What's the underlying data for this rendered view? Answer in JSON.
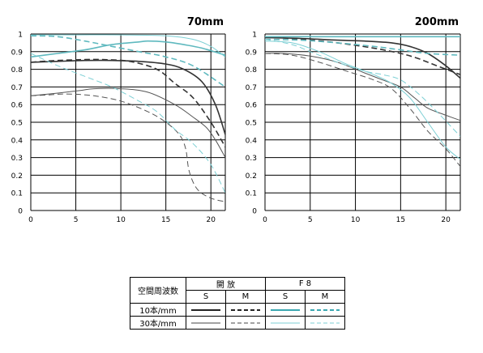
{
  "chart_data": [
    {
      "type": "line",
      "title": "70mm",
      "xlim": [
        0,
        21.6
      ],
      "ylim": [
        0,
        1
      ],
      "xticks": [
        0,
        5,
        10,
        15,
        20
      ],
      "yticks": [
        0,
        0.1,
        0.2,
        0.3,
        0.4,
        0.5,
        0.6,
        0.7,
        0.8,
        0.9,
        1
      ],
      "ytick_labels": [
        "0",
        "0.1",
        "0.2",
        "0.3",
        "0.4",
        "0.5",
        "0.6",
        "0.7",
        "0.8",
        "0.9",
        "1"
      ],
      "grid": true,
      "series": [
        {
          "freq": "10",
          "aperture": "open",
          "orient": "S",
          "color": "#333333",
          "thick": true,
          "dashed": false,
          "x": [
            0,
            3,
            6,
            9,
            12,
            15,
            17,
            19,
            20.5,
            21.6
          ],
          "y": [
            0.84,
            0.845,
            0.85,
            0.85,
            0.845,
            0.83,
            0.8,
            0.73,
            0.6,
            0.43
          ]
        },
        {
          "freq": "10",
          "aperture": "open",
          "orient": "M",
          "color": "#333333",
          "thick": true,
          "dashed": true,
          "x": [
            0,
            3,
            6,
            8,
            11,
            14,
            16,
            18,
            20,
            21.6
          ],
          "y": [
            0.84,
            0.85,
            0.855,
            0.855,
            0.845,
            0.8,
            0.72,
            0.64,
            0.5,
            0.36
          ]
        },
        {
          "freq": "30",
          "aperture": "open",
          "orient": "S",
          "color": "#555555",
          "thick": false,
          "dashed": false,
          "x": [
            0,
            3,
            5.5,
            7,
            10,
            13,
            16,
            18,
            19.5,
            20.5,
            21.6
          ],
          "y": [
            0.65,
            0.665,
            0.68,
            0.69,
            0.69,
            0.67,
            0.6,
            0.53,
            0.47,
            0.4,
            0.3
          ]
        },
        {
          "freq": "30",
          "aperture": "open",
          "orient": "M",
          "color": "#555555",
          "thick": false,
          "dashed": true,
          "x": [
            0,
            2,
            4,
            7,
            10,
            13,
            15,
            16.5,
            17.2,
            17.6,
            18.5,
            20,
            21.6
          ],
          "y": [
            0.65,
            0.655,
            0.66,
            0.65,
            0.62,
            0.56,
            0.5,
            0.43,
            0.35,
            0.22,
            0.12,
            0.07,
            0.05
          ]
        },
        {
          "freq": "10",
          "aperture": "F8",
          "orient": "S",
          "color": "#5fb9bf",
          "thick": true,
          "dashed": false,
          "x": [
            0,
            3,
            6,
            9,
            12,
            13,
            15,
            17,
            19,
            21.6
          ],
          "y": [
            0.87,
            0.89,
            0.91,
            0.94,
            0.955,
            0.96,
            0.955,
            0.94,
            0.92,
            0.88
          ]
        },
        {
          "freq": "10",
          "aperture": "F8",
          "orient": "M",
          "color": "#5fb9bf",
          "thick": true,
          "dashed": true,
          "x": [
            0,
            3,
            6,
            9,
            12,
            15,
            18,
            21.6
          ],
          "y": [
            0.99,
            0.985,
            0.96,
            0.93,
            0.9,
            0.87,
            0.82,
            0.7
          ]
        },
        {
          "freq": "30",
          "aperture": "F8",
          "orient": "S",
          "color": "#7ccfd4",
          "thick": false,
          "dashed": false,
          "x": [
            0,
            5,
            10,
            15,
            18,
            20,
            21.6
          ],
          "y": [
            0.995,
            0.995,
            0.995,
            0.99,
            0.97,
            0.93,
            0.87
          ]
        },
        {
          "freq": "30",
          "aperture": "F8",
          "orient": "M",
          "color": "#7ccfd4",
          "thick": false,
          "dashed": true,
          "x": [
            0,
            3,
            6,
            9,
            12,
            14,
            16,
            18,
            20,
            21.6
          ],
          "y": [
            0.89,
            0.82,
            0.76,
            0.7,
            0.62,
            0.56,
            0.46,
            0.38,
            0.26,
            0.1
          ]
        }
      ]
    },
    {
      "type": "line",
      "title": "200mm",
      "xlim": [
        0,
        21.6
      ],
      "ylim": [
        0,
        1
      ],
      "xticks": [
        0,
        5,
        10,
        15,
        20
      ],
      "yticks": [
        0,
        0.1,
        0.2,
        0.3,
        0.4,
        0.5,
        0.6,
        0.7,
        0.8,
        0.9,
        1
      ],
      "ytick_labels": [
        "0",
        "0.1",
        "0.2",
        "0.3",
        "0.4",
        "0.5",
        "0.6",
        "0.7",
        "0.8",
        "0.9",
        "1"
      ],
      "grid": true,
      "series": [
        {
          "freq": "10",
          "aperture": "open",
          "orient": "S",
          "color": "#333333",
          "thick": true,
          "dashed": false,
          "x": [
            0,
            4,
            8,
            11,
            14,
            16,
            18,
            20,
            21.6
          ],
          "y": [
            0.98,
            0.975,
            0.965,
            0.96,
            0.95,
            0.93,
            0.89,
            0.82,
            0.75
          ]
        },
        {
          "freq": "10",
          "aperture": "open",
          "orient": "M",
          "color": "#333333",
          "thick": true,
          "dashed": true,
          "x": [
            0,
            4,
            8,
            12,
            15,
            17,
            19,
            21.6
          ],
          "y": [
            0.985,
            0.97,
            0.95,
            0.92,
            0.89,
            0.86,
            0.82,
            0.77
          ]
        },
        {
          "freq": "30",
          "aperture": "open",
          "orient": "S",
          "color": "#555555",
          "thick": false,
          "dashed": false,
          "x": [
            0,
            2,
            5,
            8,
            11,
            13,
            15,
            16.5,
            18,
            20,
            21.6
          ],
          "y": [
            0.89,
            0.89,
            0.875,
            0.84,
            0.78,
            0.74,
            0.7,
            0.64,
            0.58,
            0.54,
            0.51
          ]
        },
        {
          "freq": "30",
          "aperture": "open",
          "orient": "M",
          "color": "#555555",
          "thick": false,
          "dashed": true,
          "x": [
            0,
            3,
            6,
            9,
            12,
            14,
            16,
            18,
            20,
            21.6
          ],
          "y": [
            0.89,
            0.88,
            0.84,
            0.79,
            0.74,
            0.69,
            0.58,
            0.45,
            0.35,
            0.25
          ]
        },
        {
          "freq": "10",
          "aperture": "F8",
          "orient": "S",
          "color": "#5fb9bf",
          "thick": true,
          "dashed": false,
          "x": [
            0,
            5,
            10,
            15,
            21.6
          ],
          "y": [
            0.985,
            0.985,
            0.985,
            0.985,
            0.985
          ]
        },
        {
          "freq": "10",
          "aperture": "F8",
          "orient": "M",
          "color": "#5fb9bf",
          "thick": true,
          "dashed": true,
          "x": [
            0,
            4,
            8,
            12,
            15,
            18,
            21.6
          ],
          "y": [
            0.97,
            0.965,
            0.95,
            0.93,
            0.91,
            0.89,
            0.88
          ]
        },
        {
          "freq": "30",
          "aperture": "F8",
          "orient": "S",
          "color": "#7ccfd4",
          "thick": false,
          "dashed": false,
          "x": [
            0,
            3,
            6,
            9,
            12,
            14,
            16,
            18,
            20,
            21.6
          ],
          "y": [
            0.96,
            0.95,
            0.9,
            0.83,
            0.77,
            0.72,
            0.64,
            0.5,
            0.36,
            0.29
          ]
        },
        {
          "freq": "30",
          "aperture": "F8",
          "orient": "M",
          "color": "#7ccfd4",
          "thick": false,
          "dashed": true,
          "x": [
            0,
            3,
            5,
            8,
            11,
            13,
            15,
            17,
            19,
            21.6
          ],
          "y": [
            0.97,
            0.94,
            0.9,
            0.84,
            0.79,
            0.77,
            0.74,
            0.66,
            0.56,
            0.42
          ]
        }
      ]
    }
  ],
  "legend": {
    "header_row_label": "空間周波数",
    "group_open": "開 放",
    "group_f8": "F 8",
    "col_s": "S",
    "col_m": "M",
    "row_10": "10本/mm",
    "row_30": "30本/mm"
  }
}
